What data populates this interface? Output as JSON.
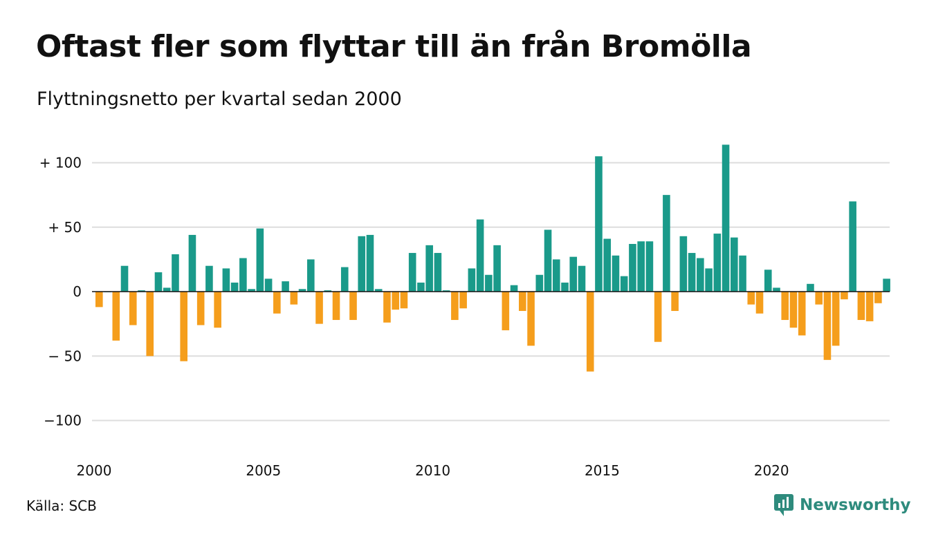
{
  "title": "Oftast fler som flyttar till än från Bromölla",
  "subtitle": "Flyttningsnetto per kvartal sedan 2000",
  "source": "Källa: SCB",
  "brand": "Newsworthy",
  "colors": {
    "positive": "#1a9a8a",
    "negative": "#f59e1c",
    "grid": "#dddddd",
    "zero_line": "#111111",
    "brand": "#2e8b7d"
  },
  "chart_data": {
    "type": "bar",
    "title": "Oftast fler som flyttar till än från Bromölla",
    "subtitle": "Flyttningsnetto per kvartal sedan 2000",
    "x_start": "2000 Q1",
    "x_unit": "quarter",
    "xticks": [
      2000,
      2005,
      2010,
      2015,
      2020
    ],
    "yticks": [
      {
        "value": 100,
        "label": "+ 100"
      },
      {
        "value": 50,
        "label": "+  50"
      },
      {
        "value": 0,
        "label": "0"
      },
      {
        "value": -50,
        "label": "− 50"
      },
      {
        "value": -100,
        "label": "−100"
      }
    ],
    "ylim": [
      -120,
      120
    ],
    "grid": true,
    "values": [
      -12,
      0,
      -38,
      20,
      -26,
      1,
      -50,
      15,
      3,
      29,
      -54,
      44,
      -26,
      20,
      -28,
      18,
      7,
      26,
      2,
      49,
      10,
      -17,
      8,
      -10,
      2,
      25,
      -25,
      1,
      -22,
      19,
      -22,
      43,
      44,
      2,
      -24,
      -14,
      -13,
      30,
      7,
      36,
      30,
      1,
      -22,
      -13,
      18,
      56,
      13,
      36,
      -30,
      5,
      -15,
      -42,
      13,
      48,
      25,
      7,
      27,
      20,
      -62,
      105,
      41,
      28,
      12,
      37,
      39,
      39,
      -39,
      75,
      -15,
      43,
      30,
      26,
      18,
      45,
      114,
      42,
      28,
      -10,
      -17,
      17,
      3,
      -22,
      -28,
      -34,
      6,
      -10,
      -53,
      -42,
      -6,
      70,
      -22,
      -23,
      -9,
      10
    ]
  }
}
